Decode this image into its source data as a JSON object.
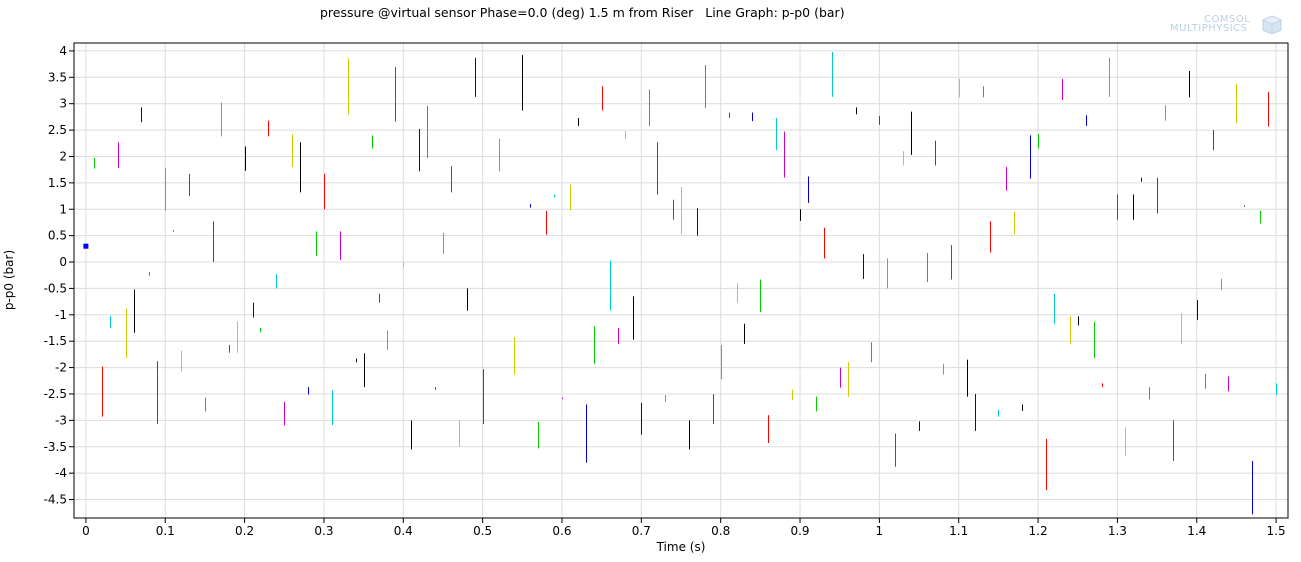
{
  "window": {
    "title": "pressure @virtual sensor Phase=0.0 (deg) 1.5 m from Riser   Line Graph: p-p0 (bar)"
  },
  "logo": {
    "line1": "COMSOL",
    "line2": "MULTIPHYSICS",
    "icon": "comsol-cube-icon",
    "color": "#b9d0e3"
  },
  "chart_data": {
    "type": "line",
    "title": "pressure @virtual sensor Phase=0.0 (deg) 1.5 m from Riser   Line Graph: p-p0 (bar)",
    "xlabel": "Time (s)",
    "ylabel": "p-p0 (bar)",
    "xlim": [
      -0.015,
      1.515
    ],
    "ylim": [
      -4.85,
      4.15
    ],
    "xticks": [
      0,
      0.1,
      0.2,
      0.3,
      0.4,
      0.5,
      0.6,
      0.7,
      0.8,
      0.9,
      1,
      1.1,
      1.2,
      1.3,
      1.4,
      1.5
    ],
    "xtick_labels": [
      "0",
      "0.1",
      "0.2",
      "0.3",
      "0.4",
      "0.5",
      "0.6",
      "0.7",
      "0.8",
      "0.9",
      "1",
      "1.1",
      "1.2",
      "1.3",
      "1.4",
      "1.5"
    ],
    "yticks": [
      4,
      3.5,
      3,
      2.5,
      2,
      1.5,
      1,
      0.5,
      0,
      -0.5,
      -1,
      -1.5,
      -2,
      -2.5,
      -3,
      -3.5,
      -4,
      -4.5
    ],
    "ytick_labels": [
      "4",
      "3.5",
      "3",
      "2.5",
      "2",
      "1.5",
      "1",
      "0.5",
      "0",
      "-0.5",
      "-1",
      "-1.5",
      "-2",
      "-2.5",
      "-3",
      "-3.5",
      "-4",
      "-4.5"
    ],
    "grid": true,
    "palette": [
      "#0000cc",
      "#00cc00",
      "#ff0000",
      "#00cccc",
      "#cc00cc",
      "#cccc00",
      "#000000"
    ],
    "marker": {
      "x": 0,
      "y": 0.3,
      "color": "#0000ff"
    },
    "segments": [
      {
        "x": 0.01,
        "y1": 1.77,
        "y2": 1.97,
        "c": 1
      },
      {
        "x": 0.02,
        "y1": -2.93,
        "y2": -1.98,
        "c": 2
      },
      {
        "x": 0.03,
        "y1": -1.25,
        "y2": -1.02,
        "c": 3
      },
      {
        "x": 0.04,
        "y1": 1.78,
        "y2": 2.27,
        "c": 4
      },
      {
        "x": 0.05,
        "y1": -1.82,
        "y2": -0.88,
        "c": 5
      },
      {
        "x": 0.06,
        "y1": -1.34,
        "y2": -0.52,
        "c": 6
      },
      {
        "x": 0.07,
        "y1": 2.65,
        "y2": 2.93,
        "c": 0
      },
      {
        "x": 0.08,
        "y1": -0.26,
        "y2": -0.19,
        "c": 1
      },
      {
        "x": 0.09,
        "y1": -3.07,
        "y2": -1.88,
        "c": 2
      },
      {
        "x": 0.1,
        "y1": 0.97,
        "y2": 1.78,
        "c": 3
      },
      {
        "x": 0.11,
        "y1": 0.58,
        "y2": 0.6,
        "c": 0
      },
      {
        "x": 0.12,
        "y1": -2.08,
        "y2": -1.68,
        "c": 5
      },
      {
        "x": 0.13,
        "y1": 1.25,
        "y2": 1.67,
        "c": 4
      },
      {
        "x": 0.15,
        "y1": -2.83,
        "y2": -2.57,
        "c": 1
      },
      {
        "x": 0.16,
        "y1": 0.0,
        "y2": 0.77,
        "c": 2
      },
      {
        "x": 0.17,
        "y1": 2.38,
        "y2": 3.02,
        "c": 3
      },
      {
        "x": 0.18,
        "y1": -1.72,
        "y2": -1.57,
        "c": 4
      },
      {
        "x": 0.19,
        "y1": -1.72,
        "y2": -1.13,
        "c": 5
      },
      {
        "x": 0.2,
        "y1": 1.73,
        "y2": 2.19,
        "c": 6
      },
      {
        "x": 0.21,
        "y1": -1.05,
        "y2": -0.77,
        "c": 0
      },
      {
        "x": 0.22,
        "y1": -1.33,
        "y2": -1.25,
        "c": 1
      },
      {
        "x": 0.23,
        "y1": 2.38,
        "y2": 2.68,
        "c": 2
      },
      {
        "x": 0.24,
        "y1": -0.5,
        "y2": -0.23,
        "c": 3
      },
      {
        "x": 0.25,
        "y1": -3.1,
        "y2": -2.65,
        "c": 4
      },
      {
        "x": 0.26,
        "y1": 1.8,
        "y2": 2.42,
        "c": 5
      },
      {
        "x": 0.27,
        "y1": 1.32,
        "y2": 2.27,
        "c": 6
      },
      {
        "x": 0.28,
        "y1": -2.51,
        "y2": -2.37,
        "c": 0
      },
      {
        "x": 0.29,
        "y1": 0.12,
        "y2": 0.58,
        "c": 1
      },
      {
        "x": 0.3,
        "y1": 1.0,
        "y2": 1.67,
        "c": 2
      },
      {
        "x": 0.31,
        "y1": -3.09,
        "y2": -2.43,
        "c": 3
      },
      {
        "x": 0.32,
        "y1": 0.04,
        "y2": 0.58,
        "c": 4
      },
      {
        "x": 0.33,
        "y1": 2.8,
        "y2": 3.86,
        "c": 5
      },
      {
        "x": 0.34,
        "y1": -1.9,
        "y2": -1.83,
        "c": 6
      },
      {
        "x": 0.35,
        "y1": -2.37,
        "y2": -1.73,
        "c": 6
      },
      {
        "x": 0.36,
        "y1": 2.15,
        "y2": 2.4,
        "c": 1
      },
      {
        "x": 0.37,
        "y1": -0.77,
        "y2": -0.6,
        "c": 2
      },
      {
        "x": 0.38,
        "y1": -1.67,
        "y2": -1.3,
        "c": 3
      },
      {
        "x": 0.39,
        "y1": 2.66,
        "y2": 3.69,
        "c": 4
      },
      {
        "x": 0.4,
        "y1": -0.1,
        "y2": 0.0,
        "c": 5
      },
      {
        "x": 0.41,
        "y1": -3.55,
        "y2": -3.0,
        "c": 6
      },
      {
        "x": 0.42,
        "y1": 1.72,
        "y2": 2.52,
        "c": 0
      },
      {
        "x": 0.43,
        "y1": 1.97,
        "y2": 2.96,
        "c": 1
      },
      {
        "x": 0.44,
        "y1": -2.42,
        "y2": -2.37,
        "c": 4
      },
      {
        "x": 0.45,
        "y1": 0.15,
        "y2": 0.55,
        "c": 3
      },
      {
        "x": 0.46,
        "y1": 1.32,
        "y2": 1.82,
        "c": 4
      },
      {
        "x": 0.47,
        "y1": -3.5,
        "y2": -3.0,
        "c": 5
      },
      {
        "x": 0.48,
        "y1": -0.92,
        "y2": -0.5,
        "c": 6
      },
      {
        "x": 0.49,
        "y1": 3.13,
        "y2": 3.87,
        "c": 0
      },
      {
        "x": 0.5,
        "y1": -3.07,
        "y2": -2.03,
        "c": 2
      },
      {
        "x": 0.52,
        "y1": 1.72,
        "y2": 2.33,
        "c": 3
      },
      {
        "x": 0.54,
        "y1": -2.13,
        "y2": -1.42,
        "c": 5
      },
      {
        "x": 0.55,
        "y1": 2.87,
        "y2": 3.92,
        "c": 6
      },
      {
        "x": 0.56,
        "y1": 1.03,
        "y2": 1.1,
        "c": 0
      },
      {
        "x": 0.57,
        "y1": -3.53,
        "y2": -3.03,
        "c": 1
      },
      {
        "x": 0.58,
        "y1": 0.52,
        "y2": 0.97,
        "c": 2
      },
      {
        "x": 0.59,
        "y1": 1.22,
        "y2": 1.28,
        "c": 3
      },
      {
        "x": 0.6,
        "y1": -2.6,
        "y2": -2.57,
        "c": 4
      },
      {
        "x": 0.61,
        "y1": 0.98,
        "y2": 1.47,
        "c": 5
      },
      {
        "x": 0.62,
        "y1": 2.58,
        "y2": 2.73,
        "c": 6
      },
      {
        "x": 0.63,
        "y1": -3.8,
        "y2": -2.7,
        "c": 0
      },
      {
        "x": 0.64,
        "y1": -1.93,
        "y2": -1.22,
        "c": 1
      },
      {
        "x": 0.65,
        "y1": 2.87,
        "y2": 3.33,
        "c": 2
      },
      {
        "x": 0.66,
        "y1": -0.92,
        "y2": 0.03,
        "c": 3
      },
      {
        "x": 0.67,
        "y1": -1.55,
        "y2": -1.25,
        "c": 4
      },
      {
        "x": 0.68,
        "y1": 2.33,
        "y2": 2.48,
        "c": 5
      },
      {
        "x": 0.69,
        "y1": -1.47,
        "y2": -0.65,
        "c": 6
      },
      {
        "x": 0.7,
        "y1": -3.27,
        "y2": -2.67,
        "c": 0
      },
      {
        "x": 0.71,
        "y1": 2.57,
        "y2": 3.27,
        "c": 1
      },
      {
        "x": 0.72,
        "y1": 1.28,
        "y2": 2.27,
        "c": 2
      },
      {
        "x": 0.73,
        "y1": -2.65,
        "y2": -2.52,
        "c": 3
      },
      {
        "x": 0.74,
        "y1": 0.8,
        "y2": 1.18,
        "c": 4
      },
      {
        "x": 0.75,
        "y1": 0.52,
        "y2": 1.42,
        "c": 5
      },
      {
        "x": 0.76,
        "y1": -3.55,
        "y2": -3.0,
        "c": 6
      },
      {
        "x": 0.77,
        "y1": 0.5,
        "y2": 1.02,
        "c": 0
      },
      {
        "x": 0.78,
        "y1": 2.92,
        "y2": 3.73,
        "c": 1
      },
      {
        "x": 0.79,
        "y1": -3.07,
        "y2": -2.5,
        "c": 2
      },
      {
        "x": 0.8,
        "y1": -2.22,
        "y2": -1.57,
        "c": 3
      },
      {
        "x": 0.81,
        "y1": 2.73,
        "y2": 2.83,
        "c": 4
      },
      {
        "x": 0.82,
        "y1": -0.77,
        "y2": -0.4,
        "c": 5
      },
      {
        "x": 0.83,
        "y1": -1.55,
        "y2": -1.17,
        "c": 6
      },
      {
        "x": 0.84,
        "y1": 2.67,
        "y2": 2.83,
        "c": 0
      },
      {
        "x": 0.85,
        "y1": -0.95,
        "y2": -0.33,
        "c": 1
      },
      {
        "x": 0.86,
        "y1": -3.43,
        "y2": -2.9,
        "c": 2
      },
      {
        "x": 0.87,
        "y1": 2.12,
        "y2": 2.73,
        "c": 3
      },
      {
        "x": 0.88,
        "y1": 1.6,
        "y2": 2.47,
        "c": 4
      },
      {
        "x": 0.89,
        "y1": -2.62,
        "y2": -2.42,
        "c": 5
      },
      {
        "x": 0.9,
        "y1": 0.78,
        "y2": 1.0,
        "c": 6
      },
      {
        "x": 0.91,
        "y1": 1.12,
        "y2": 1.62,
        "c": 0
      },
      {
        "x": 0.92,
        "y1": -2.83,
        "y2": -2.55,
        "c": 1
      },
      {
        "x": 0.93,
        "y1": 0.07,
        "y2": 0.65,
        "c": 2
      },
      {
        "x": 0.94,
        "y1": 3.13,
        "y2": 3.98,
        "c": 3
      },
      {
        "x": 0.95,
        "y1": -2.38,
        "y2": -2.0,
        "c": 4
      },
      {
        "x": 0.96,
        "y1": -2.55,
        "y2": -1.9,
        "c": 5
      },
      {
        "x": 0.97,
        "y1": 2.8,
        "y2": 2.93,
        "c": 6
      },
      {
        "x": 0.98,
        "y1": -0.32,
        "y2": 0.15,
        "c": 0
      },
      {
        "x": 0.99,
        "y1": -1.9,
        "y2": -1.52,
        "c": 1
      },
      {
        "x": 1.0,
        "y1": 2.6,
        "y2": 2.77,
        "c": 2
      },
      {
        "x": 1.01,
        "y1": -0.5,
        "y2": 0.07,
        "c": 3
      },
      {
        "x": 1.02,
        "y1": -3.88,
        "y2": -3.25,
        "c": 4
      },
      {
        "x": 1.03,
        "y1": 1.83,
        "y2": 2.1,
        "c": 5
      },
      {
        "x": 1.04,
        "y1": 2.03,
        "y2": 2.85,
        "c": 6
      },
      {
        "x": 1.05,
        "y1": -3.2,
        "y2": -3.02,
        "c": 0
      },
      {
        "x": 1.06,
        "y1": -0.38,
        "y2": 0.17,
        "c": 1
      },
      {
        "x": 1.07,
        "y1": 1.83,
        "y2": 2.3,
        "c": 2
      },
      {
        "x": 1.08,
        "y1": -2.13,
        "y2": -1.93,
        "c": 3
      },
      {
        "x": 1.09,
        "y1": -0.33,
        "y2": 0.32,
        "c": 4
      },
      {
        "x": 1.1,
        "y1": 3.12,
        "y2": 3.47,
        "c": 5
      },
      {
        "x": 1.11,
        "y1": -2.55,
        "y2": -1.85,
        "c": 6
      },
      {
        "x": 1.12,
        "y1": -3.2,
        "y2": -2.5,
        "c": 0
      },
      {
        "x": 1.13,
        "y1": 3.12,
        "y2": 3.33,
        "c": 1
      },
      {
        "x": 1.14,
        "y1": 0.18,
        "y2": 0.77,
        "c": 2
      },
      {
        "x": 1.15,
        "y1": -2.93,
        "y2": -2.8,
        "c": 3
      },
      {
        "x": 1.16,
        "y1": 1.35,
        "y2": 1.8,
        "c": 4
      },
      {
        "x": 1.17,
        "y1": 0.53,
        "y2": 0.95,
        "c": 5
      },
      {
        "x": 1.18,
        "y1": -2.82,
        "y2": -2.7,
        "c": 6
      },
      {
        "x": 1.19,
        "y1": 1.58,
        "y2": 2.4,
        "c": 0
      },
      {
        "x": 1.2,
        "y1": 2.15,
        "y2": 2.42,
        "c": 1
      },
      {
        "x": 1.21,
        "y1": -4.32,
        "y2": -3.35,
        "c": 2
      },
      {
        "x": 1.22,
        "y1": -1.17,
        "y2": -0.6,
        "c": 3
      },
      {
        "x": 1.23,
        "y1": 3.07,
        "y2": 3.47,
        "c": 4
      },
      {
        "x": 1.24,
        "y1": -1.55,
        "y2": -1.03,
        "c": 5
      },
      {
        "x": 1.25,
        "y1": -1.2,
        "y2": -1.03,
        "c": 6
      },
      {
        "x": 1.26,
        "y1": 2.58,
        "y2": 2.78,
        "c": 0
      },
      {
        "x": 1.27,
        "y1": -1.82,
        "y2": -1.13,
        "c": 1
      },
      {
        "x": 1.28,
        "y1": -2.37,
        "y2": -2.3,
        "c": 2
      },
      {
        "x": 1.29,
        "y1": 3.13,
        "y2": 3.87,
        "c": 3
      },
      {
        "x": 1.3,
        "y1": 0.8,
        "y2": 1.28,
        "c": 4
      },
      {
        "x": 1.31,
        "y1": -3.67,
        "y2": -3.13,
        "c": 5
      },
      {
        "x": 1.32,
        "y1": 0.8,
        "y2": 1.28,
        "c": 6
      },
      {
        "x": 1.33,
        "y1": 1.52,
        "y2": 1.6,
        "c": 0
      },
      {
        "x": 1.34,
        "y1": -2.6,
        "y2": -2.37,
        "c": 1
      },
      {
        "x": 1.35,
        "y1": 0.92,
        "y2": 1.6,
        "c": 2
      },
      {
        "x": 1.36,
        "y1": 2.68,
        "y2": 2.97,
        "c": 3
      },
      {
        "x": 1.37,
        "y1": -3.77,
        "y2": -3.0,
        "c": 4
      },
      {
        "x": 1.38,
        "y1": -1.55,
        "y2": -0.97,
        "c": 5
      },
      {
        "x": 1.39,
        "y1": 3.12,
        "y2": 3.62,
        "c": 6
      },
      {
        "x": 1.4,
        "y1": -1.1,
        "y2": -0.72,
        "c": 0
      },
      {
        "x": 1.41,
        "y1": -2.4,
        "y2": -2.12,
        "c": 1
      },
      {
        "x": 1.42,
        "y1": 2.12,
        "y2": 2.5,
        "c": 2
      },
      {
        "x": 1.43,
        "y1": -0.53,
        "y2": -0.32,
        "c": 3
      },
      {
        "x": 1.44,
        "y1": -2.45,
        "y2": -2.17,
        "c": 4
      },
      {
        "x": 1.45,
        "y1": 2.63,
        "y2": 3.38,
        "c": 5
      },
      {
        "x": 1.46,
        "y1": 1.05,
        "y2": 1.07,
        "c": 6
      },
      {
        "x": 1.47,
        "y1": -4.78,
        "y2": -3.77,
        "c": 0
      },
      {
        "x": 1.48,
        "y1": 0.73,
        "y2": 0.97,
        "c": 1
      },
      {
        "x": 1.49,
        "y1": 2.57,
        "y2": 3.22,
        "c": 2
      },
      {
        "x": 1.5,
        "y1": -2.52,
        "y2": -2.3,
        "c": 3
      }
    ]
  }
}
